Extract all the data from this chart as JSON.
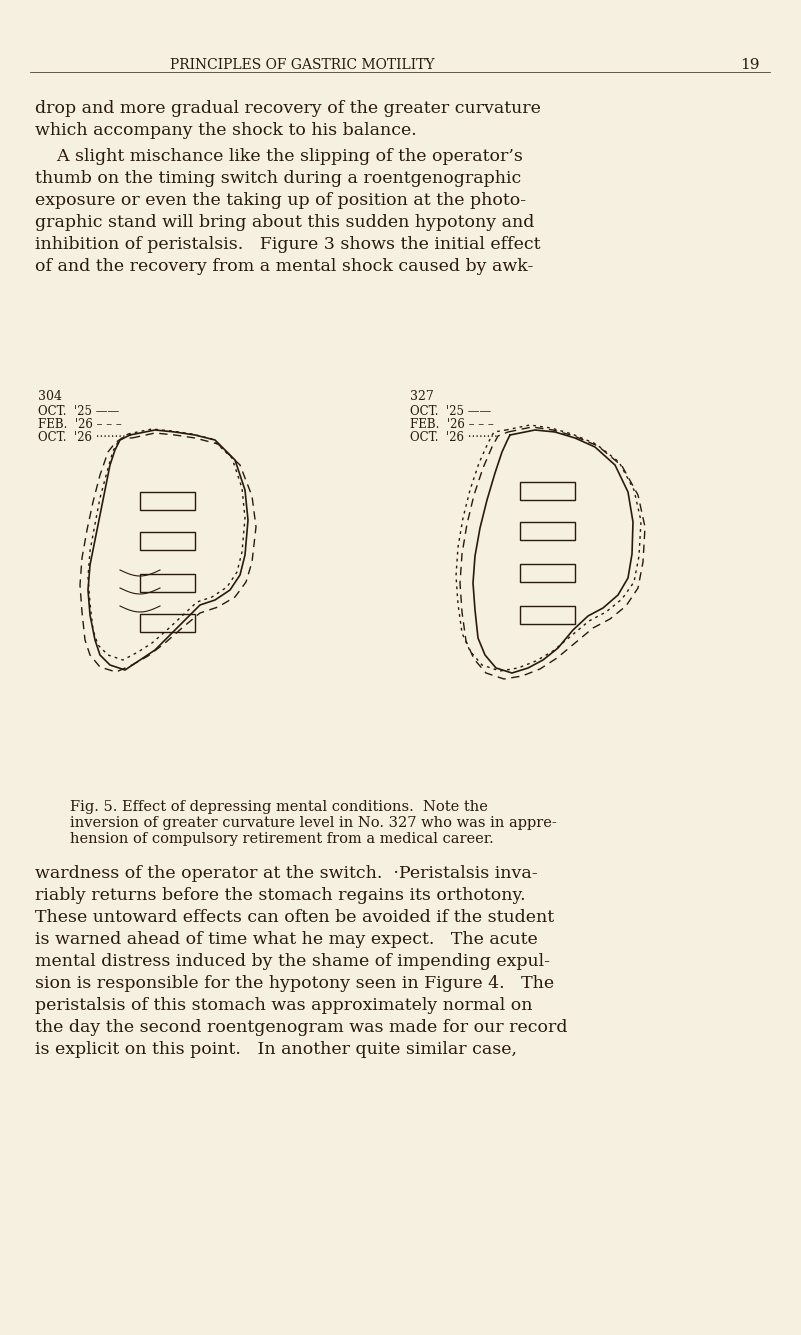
{
  "bg_color": "#f5f0e0",
  "page_header": "PRINCIPLES OF GASTRIC MOTILITY",
  "page_number": "19",
  "header_font_size": 10,
  "body_font_size": 12.5,
  "caption_font_size": 10.5,
  "para1": "drop and more gradual recovery of the greater curvature\nwhich accompany the shock to his balance.",
  "para2": "    A slight mischance like the slipping of the operator’s\nthumb on the timing switch during a roentgenographic\nexposure or even the taking up of position at the photo-\ngraphic stand will bring about this sudden hypotony and\ninhibition of peristalsis.   Figure 3 shows the initial effect\nof and the recovery from a mental shock caused by awk-",
  "fig_caption": "Fig. 5. Effect of depressing mental conditions.  Note the\ninversion of greater curvature level in No. 327 who was in appre-\nhension of compulsory retirement from a medical career.",
  "para3": "wardness of the operator at the switch.  ·Peristalsis inva-\nriably returns before the stomach regains its orthotony.\nThese untoward effects can often be avoided if the student\nis warned ahead of time what he may expect.   The acute\nmental distress induced by the shame of impending expul-\nsion is responsible for the hypotony seen in Figure 4.   The\nperistalsis of this stomach was approximately normal on\nthe day the second roentgenogram was made for our record\nis explicit on this point.   In another quite similar case,",
  "left_legend_number": "304",
  "left_legend_lines": [
    "OCT. ’25 ——",
    "FEB. ’26 – –",
    "OCT. ’26 ········"
  ],
  "right_legend_number": "327",
  "right_legend_lines": [
    "OCT. ’25 ——",
    "FEB. ’26 – – –",
    "OCT. ’26 ········"
  ]
}
